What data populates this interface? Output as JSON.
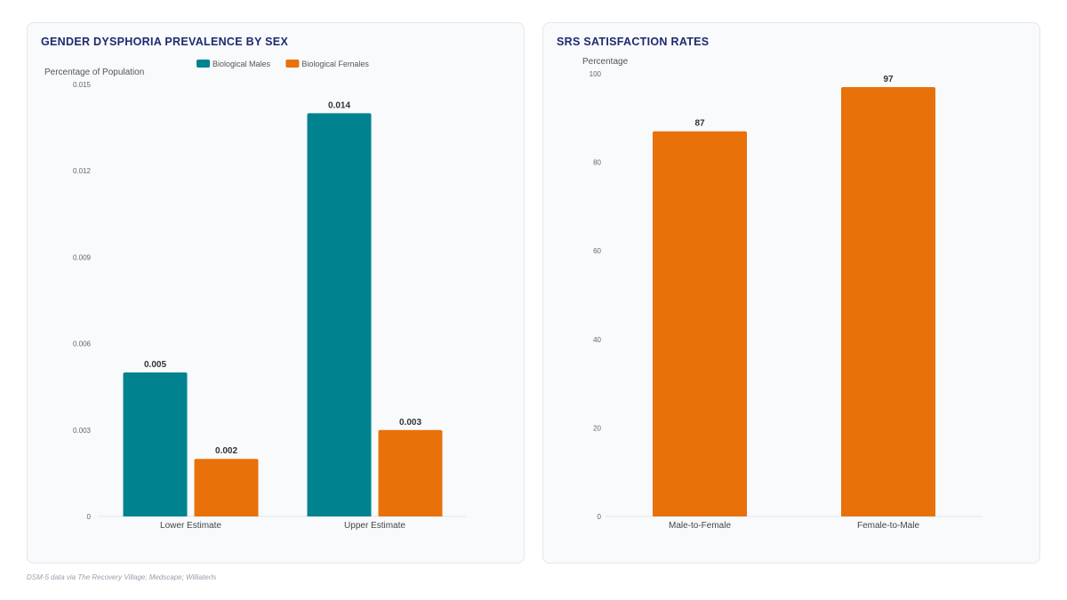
{
  "footer": {
    "source": "DSM-5 data via The Recovery Village; Medscape; Williaterls"
  },
  "colors": {
    "males": "#00838f",
    "females": "#e8710a",
    "title": "#1e2a6e"
  },
  "chart_data": [
    {
      "type": "bar",
      "title": "GENDER DYSPHORIA PREVALENCE BY SEX",
      "ylabel": "Percentage of Population",
      "xlabel": "",
      "ylim": [
        0,
        0.015
      ],
      "yticks": [
        "0",
        "0.003",
        "0.006",
        "0.009",
        "0.012",
        "0.015"
      ],
      "categories": [
        "Lower Estimate",
        "Upper Estimate"
      ],
      "legend_position": "top-center",
      "series": [
        {
          "name": "Biological Males",
          "values": [
            0.005,
            0.014
          ],
          "labels": [
            "0.005",
            "0.014"
          ],
          "color": "#00838f"
        },
        {
          "name": "Biological Females",
          "values": [
            0.002,
            0.003
          ],
          "labels": [
            "0.002",
            "0.003"
          ],
          "color": "#e8710a"
        }
      ]
    },
    {
      "type": "bar",
      "title": "SRS SATISFACTION RATES",
      "ylabel": "Percentage",
      "xlabel": "",
      "ylim": [
        0,
        100
      ],
      "yticks": [
        "0",
        "20",
        "40",
        "60",
        "80",
        "100"
      ],
      "categories": [
        "Male-to-Female",
        "Female-to-Male"
      ],
      "series": [
        {
          "values": [
            87,
            97
          ],
          "labels": [
            "87",
            "97"
          ],
          "color": "#e8710a"
        }
      ]
    }
  ]
}
